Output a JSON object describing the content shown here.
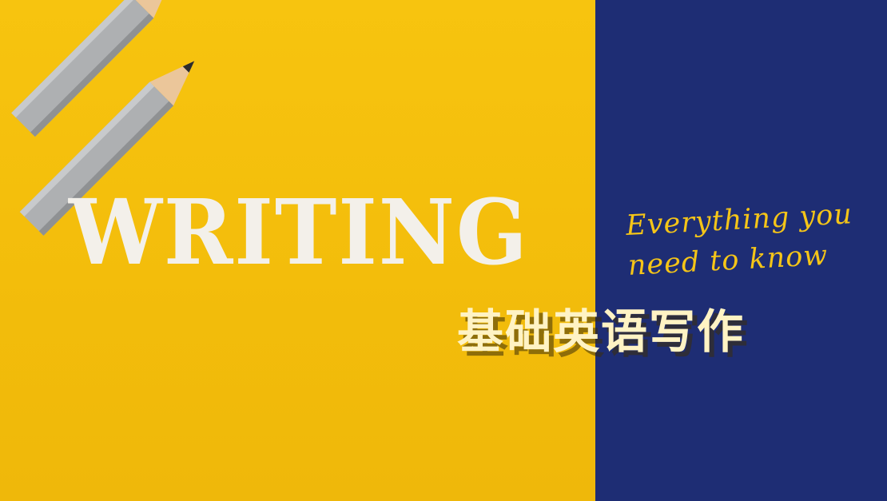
{
  "hero": {
    "title": "WRITING",
    "tagline_line1": "Everything you",
    "tagline_line2": "need to know",
    "subtitle": "基础英语写作"
  },
  "decor": {
    "pencils_icon": "pencils-icon"
  },
  "colors": {
    "yellow_background": "#f5be0b",
    "navy_panel": "#1e2d74",
    "title_text": "#f3f0ea",
    "tagline_text": "#f5c518",
    "subtitle_text": "#fff3c4"
  }
}
